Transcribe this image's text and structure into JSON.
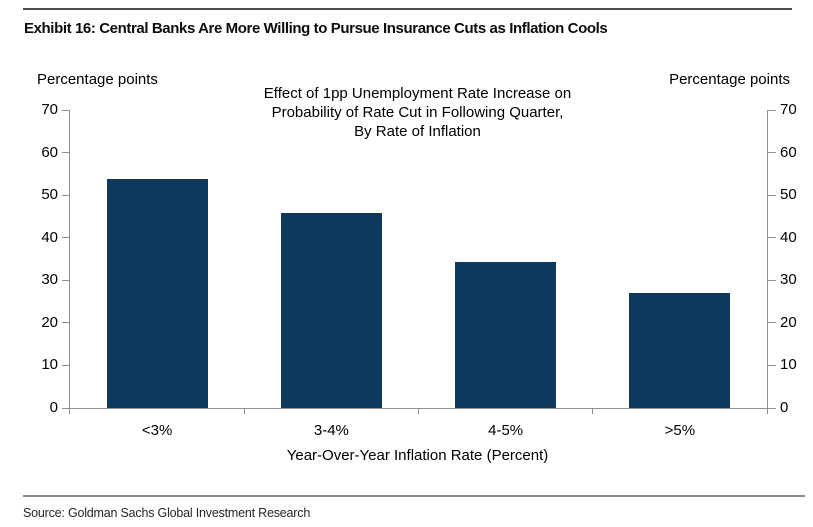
{
  "header": {
    "exhibit_title": "Exhibit 16: Central Banks Are More Willing to Pursue Insurance Cuts as Inflation Cools"
  },
  "chart_data": {
    "type": "bar",
    "title_lines": [
      "Effect of 1pp Unemployment Rate Increase on",
      "Probability of Rate Cut in Following Quarter,",
      "By Rate of Inflation"
    ],
    "categories": [
      "<3%",
      "3-4%",
      "4-5%",
      ">5%"
    ],
    "values": [
      53.8,
      45.7,
      34.4,
      27.0
    ],
    "xlabel": "Year-Over-Year Inflation Rate (Percent)",
    "left_axis_label": "Percentage points",
    "right_axis_label": "Percentage points",
    "ylim": [
      0,
      70
    ],
    "yticks": [
      0,
      10,
      20,
      30,
      40,
      50,
      60,
      70
    ],
    "grid": false,
    "legend": "none",
    "bar_color": "#0d3a5c",
    "axis_color": "#8f8f8f"
  },
  "footer": {
    "source": "Source: Goldman Sachs Global Investment Research"
  }
}
